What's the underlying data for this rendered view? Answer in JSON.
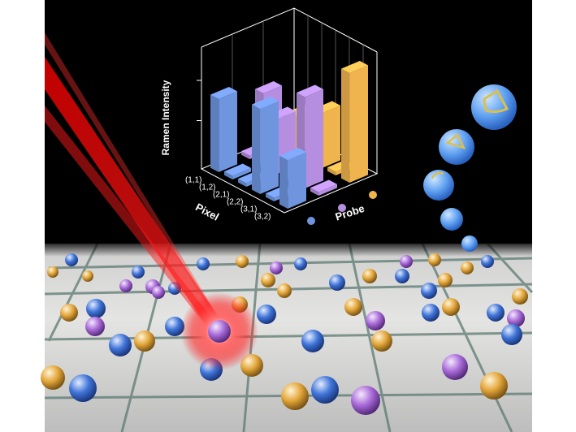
{
  "chart_data": {
    "type": "bar3d",
    "ylabel": "Ramen Intensity",
    "xlabel": "Pixel",
    "zlabel": "Probe",
    "categories": [
      "(1,1)",
      "(1,2)",
      "(2,1)",
      "(2,2)",
      "(3,1)",
      "(3,2)"
    ],
    "ylim": [
      0,
      100
    ],
    "series": [
      {
        "color": "#6f95de",
        "values": [
          60,
          3,
          3,
          70,
          3,
          40
        ]
      },
      {
        "color": "#b58ee0",
        "values": [
          3,
          60,
          45,
          3,
          75,
          3
        ]
      },
      {
        "color": "#f0b44e",
        "values": [
          3,
          30,
          3,
          45,
          3,
          90
        ]
      }
    ]
  }
}
